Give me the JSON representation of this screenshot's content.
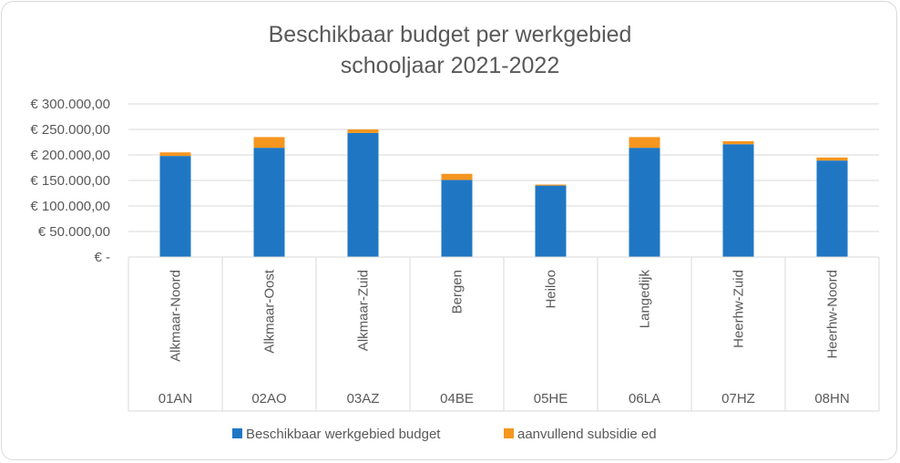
{
  "chart_data": {
    "type": "bar",
    "stacked": true,
    "title": "Beschikbaar budget per werkgebied",
    "subtitle": "schooljaar 2021-2022",
    "categories": [
      "Alkmaar-Noord",
      "Alkmaar-Oost",
      "Alkmaar-Zuid",
      "Bergen",
      "Heiloo",
      "Langedijk",
      "Heerhw-Zuid",
      "Heerhw-Noord"
    ],
    "category_codes": [
      "01AN",
      "02AO",
      "03AZ",
      "04BE",
      "05HE",
      "06LA",
      "07HZ",
      "08HN"
    ],
    "series": [
      {
        "name": "Beschikbaar werkgebied budget",
        "color": "#1f77c4",
        "values": [
          198000,
          214000,
          243000,
          151000,
          140000,
          214000,
          221000,
          189000
        ]
      },
      {
        "name": "aanvullend subsidie ed",
        "color": "#f5961f",
        "values": [
          7000,
          21000,
          7000,
          12000,
          2000,
          21000,
          6000,
          6000
        ]
      }
    ],
    "ylim": [
      0,
      300000
    ],
    "yticks": [
      0,
      50000,
      100000,
      150000,
      200000,
      250000,
      300000
    ],
    "ytick_labels": [
      "€ -",
      "€ 50.000,00",
      "€ 100.000,00",
      "€ 150.000,00",
      "€ 200.000,00",
      "€ 250.000,00",
      "€ 300.000,00"
    ],
    "grid": true,
    "legend_position": "bottom"
  }
}
